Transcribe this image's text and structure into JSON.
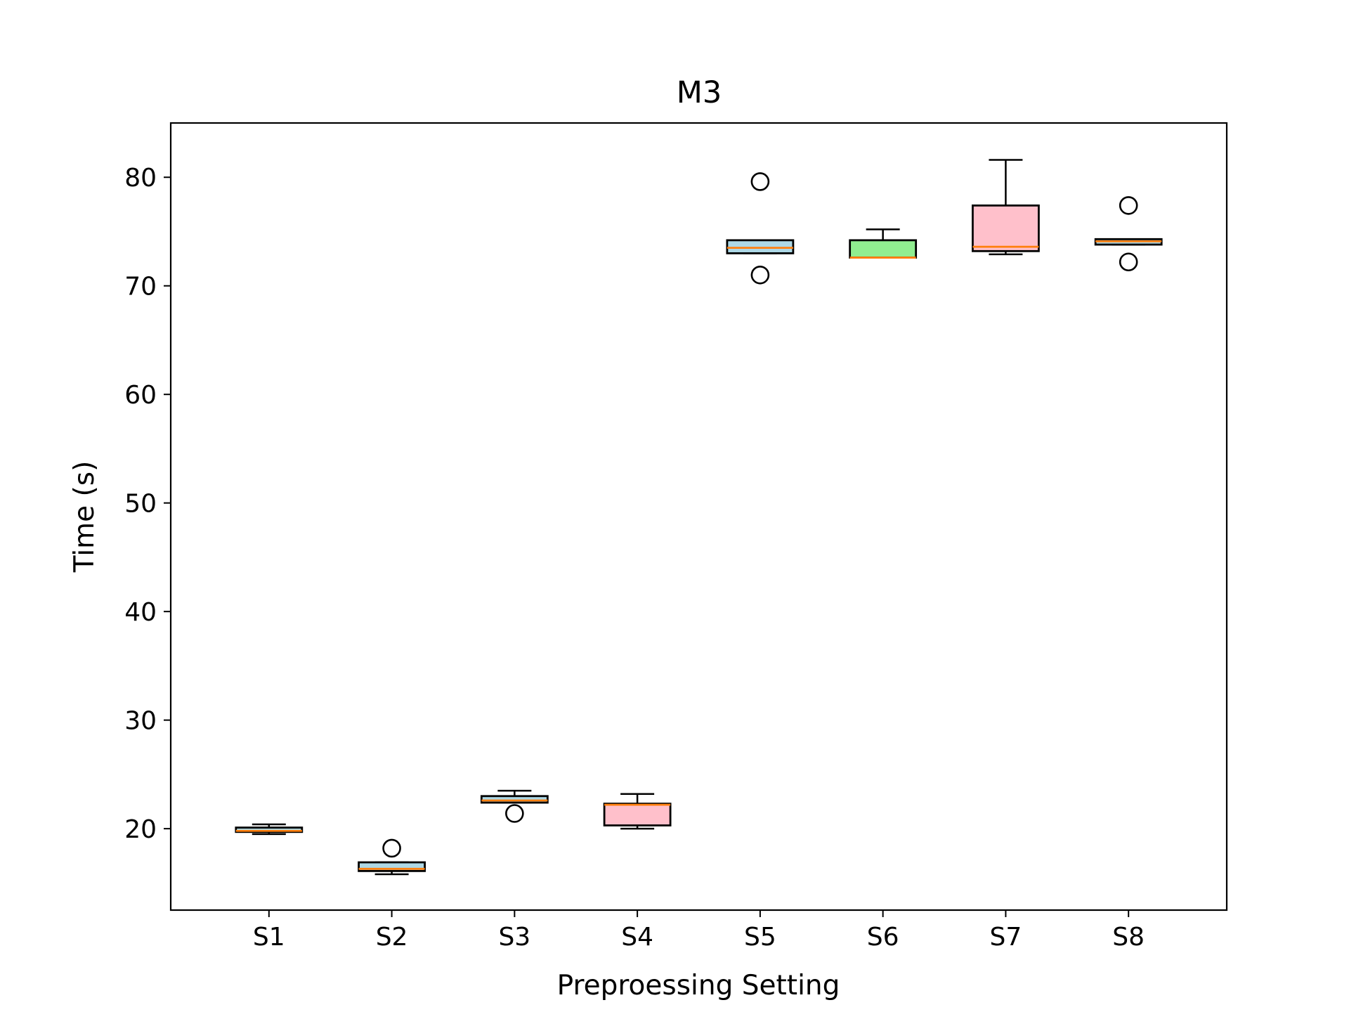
{
  "chart_data": {
    "type": "box",
    "title": "M3",
    "xlabel": "Preproessing Setting",
    "ylabel": "Time (s)",
    "ylim": [
      12.5,
      85
    ],
    "yticks": [
      20,
      30,
      40,
      50,
      60,
      70,
      80
    ],
    "ytick_labels": [
      "20",
      "30",
      "40",
      "50",
      "60",
      "70",
      "80"
    ],
    "grid": false,
    "categories": [
      "S1",
      "S2",
      "S3",
      "S4",
      "S5",
      "S6",
      "S7",
      "S8"
    ],
    "boxes": [
      {
        "label": "S1",
        "whisker_low": 19.5,
        "q1": 19.7,
        "median": 19.8,
        "q3": 20.1,
        "whisker_high": 20.4,
        "outliers": [],
        "fill": "#add8e6"
      },
      {
        "label": "S2",
        "whisker_low": 15.8,
        "q1": 16.1,
        "median": 16.3,
        "q3": 16.9,
        "whisker_high": 16.9,
        "outliers": [
          18.2
        ],
        "fill": "#add8e6"
      },
      {
        "label": "S3",
        "whisker_low": 22.4,
        "q1": 22.4,
        "median": 22.6,
        "q3": 23.0,
        "whisker_high": 23.5,
        "outliers": [
          21.4
        ],
        "fill": "#add8e6"
      },
      {
        "label": "S4",
        "whisker_low": 20.0,
        "q1": 20.3,
        "median": 22.2,
        "q3": 22.3,
        "whisker_high": 23.2,
        "outliers": [],
        "fill": "#ffc0cb"
      },
      {
        "label": "S5",
        "whisker_low": 73.0,
        "q1": 73.0,
        "median": 73.5,
        "q3": 74.2,
        "whisker_high": 74.2,
        "outliers": [
          79.6,
          71.0
        ],
        "fill": "#add8e6"
      },
      {
        "label": "S6",
        "whisker_low": 72.6,
        "q1": 72.6,
        "median": 72.6,
        "q3": 74.2,
        "whisker_high": 75.2,
        "outliers": [],
        "fill": "#90ee90"
      },
      {
        "label": "S7",
        "whisker_low": 72.9,
        "q1": 73.2,
        "median": 73.6,
        "q3": 77.4,
        "whisker_high": 81.6,
        "outliers": [],
        "fill": "#ffc0cb"
      },
      {
        "label": "S8",
        "whisker_low": 73.8,
        "q1": 73.8,
        "median": 74.1,
        "q3": 74.3,
        "whisker_high": 74.3,
        "outliers": [
          77.4,
          72.2
        ],
        "fill": "#add8e6"
      }
    ],
    "colors": {
      "median": "#ff7f0e",
      "edge": "#000000",
      "background": "#ffffff"
    }
  }
}
